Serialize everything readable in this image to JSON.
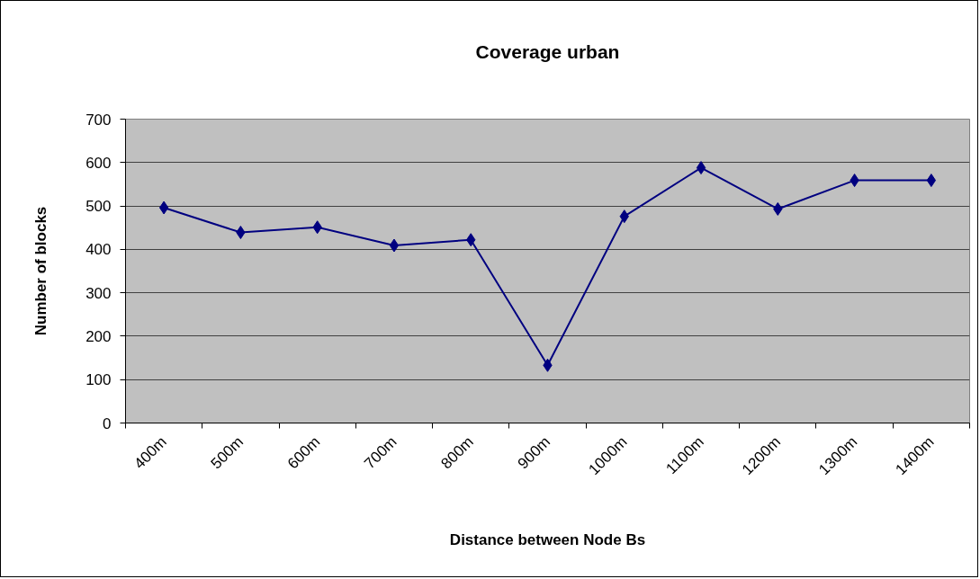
{
  "chart_data": {
    "type": "line",
    "title": "Coverage urban",
    "xlabel": "Distance between Node Bs",
    "ylabel": "Number of blocks",
    "categories": [
      "400m",
      "500m",
      "600m",
      "700m",
      "800m",
      "900m",
      "1000m",
      "1100m",
      "1200m",
      "1300m",
      "1400m"
    ],
    "series": [
      {
        "color": "#000080",
        "values": [
          496,
          439,
          451,
          409,
          422,
          133,
          476,
          588,
          493,
          559,
          559
        ]
      }
    ],
    "ylim": [
      0,
      700
    ],
    "yticks": [
      0,
      100,
      200,
      300,
      400,
      500,
      600,
      700
    ],
    "grid": "y",
    "marker": "diamond",
    "line_style": "solid"
  }
}
